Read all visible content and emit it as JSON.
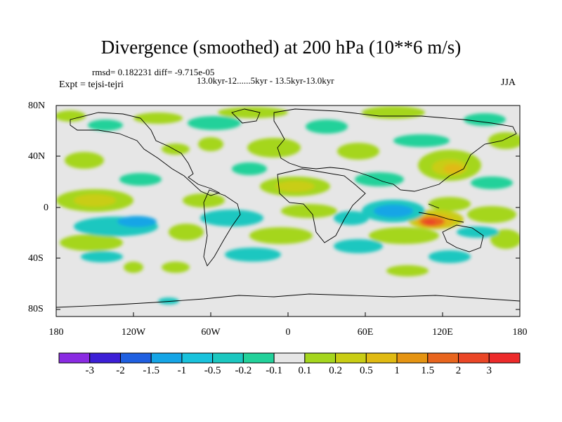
{
  "title": "Divergence (smoothed) at 200 hPa (10**6 m/s)",
  "stats": "rmsd= 0.182231 diff= -9.715e-05",
  "period": "13.0kyr-12......5kyr - 13.5kyr-13.0kyr",
  "experiment": "Expt = tejsi-tejri",
  "season": "JJA",
  "lat_labels": [
    "80N",
    "40N",
    "0",
    "40S",
    "80S"
  ],
  "lon_labels": [
    "180",
    "120W",
    "60W",
    "0",
    "60E",
    "120E",
    "180"
  ],
  "colorbar": {
    "labels": [
      "-3",
      "-2",
      "-1.5",
      "-1",
      "-0.5",
      "-0.2",
      "-0.1",
      "0.1",
      "0.2",
      "0.5",
      "1",
      "1.5",
      "2",
      "3"
    ],
    "colors": [
      "#8a2be2",
      "#3c1fd6",
      "#1f5fe0",
      "#15a5e6",
      "#19c2dc",
      "#1bc7c0",
      "#22d19a",
      "#e6e6e6",
      "#a5d61e",
      "#c9cd14",
      "#e0ba12",
      "#e59412",
      "#e8651e",
      "#ea4626",
      "#ec2a2a"
    ]
  }
}
